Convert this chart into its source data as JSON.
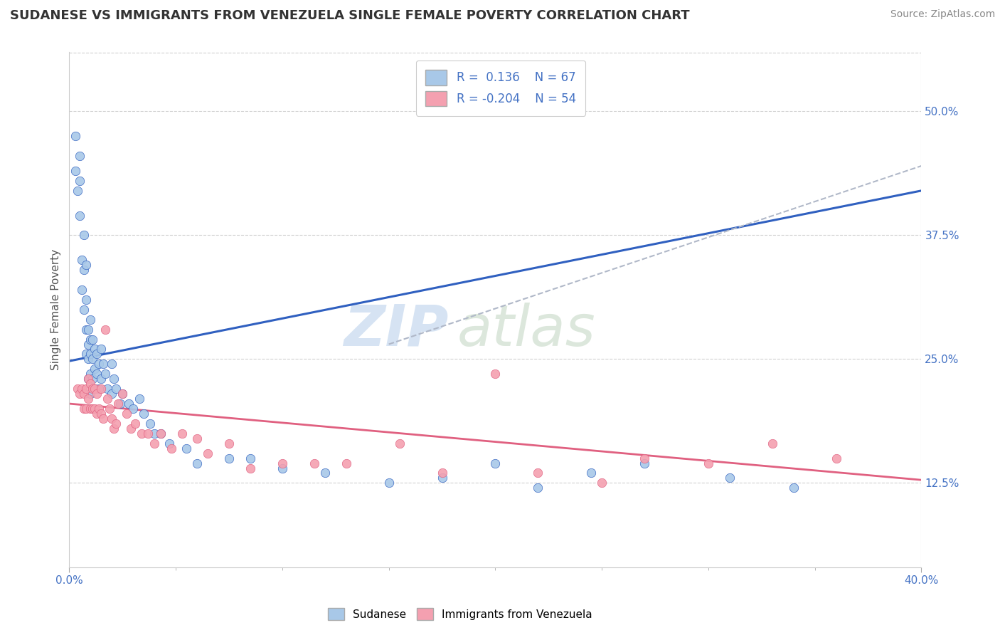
{
  "title": "SUDANESE VS IMMIGRANTS FROM VENEZUELA SINGLE FEMALE POVERTY CORRELATION CHART",
  "source": "Source: ZipAtlas.com",
  "ylabel": "Single Female Poverty",
  "xlim": [
    0.0,
    0.4
  ],
  "ylim": [
    0.04,
    0.56
  ],
  "y_tick_vals_right": [
    0.5,
    0.375,
    0.25,
    0.125
  ],
  "r_blue": 0.136,
  "n_blue": 67,
  "r_pink": -0.204,
  "n_pink": 54,
  "blue_color": "#a8c8e8",
  "pink_color": "#f4a0b0",
  "trendline_blue_color": "#3060c0",
  "trendline_pink_color": "#e06080",
  "trendline_dashed_color": "#b0b8c8",
  "blue_scatter_x": [
    0.003,
    0.003,
    0.004,
    0.005,
    0.005,
    0.005,
    0.006,
    0.006,
    0.007,
    0.007,
    0.007,
    0.008,
    0.008,
    0.008,
    0.008,
    0.009,
    0.009,
    0.009,
    0.009,
    0.01,
    0.01,
    0.01,
    0.01,
    0.01,
    0.011,
    0.011,
    0.011,
    0.012,
    0.012,
    0.012,
    0.013,
    0.013,
    0.014,
    0.014,
    0.015,
    0.015,
    0.016,
    0.017,
    0.018,
    0.02,
    0.02,
    0.021,
    0.022,
    0.024,
    0.025,
    0.028,
    0.03,
    0.033,
    0.035,
    0.038,
    0.04,
    0.043,
    0.047,
    0.055,
    0.06,
    0.075,
    0.085,
    0.1,
    0.12,
    0.15,
    0.175,
    0.2,
    0.22,
    0.245,
    0.27,
    0.31,
    0.34
  ],
  "blue_scatter_y": [
    0.475,
    0.44,
    0.42,
    0.455,
    0.43,
    0.395,
    0.35,
    0.32,
    0.375,
    0.34,
    0.3,
    0.345,
    0.31,
    0.28,
    0.255,
    0.28,
    0.265,
    0.25,
    0.23,
    0.29,
    0.27,
    0.255,
    0.235,
    0.215,
    0.27,
    0.25,
    0.23,
    0.26,
    0.24,
    0.22,
    0.255,
    0.235,
    0.245,
    0.22,
    0.26,
    0.23,
    0.245,
    0.235,
    0.22,
    0.245,
    0.215,
    0.23,
    0.22,
    0.205,
    0.215,
    0.205,
    0.2,
    0.21,
    0.195,
    0.185,
    0.175,
    0.175,
    0.165,
    0.16,
    0.145,
    0.15,
    0.15,
    0.14,
    0.135,
    0.125,
    0.13,
    0.145,
    0.12,
    0.135,
    0.145,
    0.13,
    0.12
  ],
  "pink_scatter_x": [
    0.004,
    0.005,
    0.006,
    0.007,
    0.007,
    0.008,
    0.008,
    0.009,
    0.009,
    0.01,
    0.01,
    0.011,
    0.011,
    0.012,
    0.012,
    0.013,
    0.013,
    0.014,
    0.015,
    0.015,
    0.016,
    0.017,
    0.018,
    0.019,
    0.02,
    0.021,
    0.022,
    0.023,
    0.025,
    0.027,
    0.029,
    0.031,
    0.034,
    0.037,
    0.04,
    0.043,
    0.048,
    0.053,
    0.06,
    0.065,
    0.075,
    0.085,
    0.1,
    0.115,
    0.13,
    0.155,
    0.175,
    0.2,
    0.22,
    0.25,
    0.27,
    0.3,
    0.33,
    0.36
  ],
  "pink_scatter_y": [
    0.22,
    0.215,
    0.22,
    0.215,
    0.2,
    0.22,
    0.2,
    0.23,
    0.21,
    0.225,
    0.2,
    0.22,
    0.2,
    0.22,
    0.2,
    0.215,
    0.195,
    0.2,
    0.195,
    0.22,
    0.19,
    0.28,
    0.21,
    0.2,
    0.19,
    0.18,
    0.185,
    0.205,
    0.215,
    0.195,
    0.18,
    0.185,
    0.175,
    0.175,
    0.165,
    0.175,
    0.16,
    0.175,
    0.17,
    0.155,
    0.165,
    0.14,
    0.145,
    0.145,
    0.145,
    0.165,
    0.135,
    0.235,
    0.135,
    0.125,
    0.15,
    0.145,
    0.165,
    0.15
  ],
  "trendline_blue_x0": 0.0,
  "trendline_blue_y0": 0.248,
  "trendline_blue_x1": 0.4,
  "trendline_blue_y1": 0.42,
  "trendline_pink_x0": 0.0,
  "trendline_pink_y0": 0.205,
  "trendline_pink_x1": 0.4,
  "trendline_pink_y1": 0.128,
  "trendline_dashed_x0": 0.15,
  "trendline_dashed_y0": 0.265,
  "trendline_dashed_x1": 0.4,
  "trendline_dashed_y1": 0.445
}
